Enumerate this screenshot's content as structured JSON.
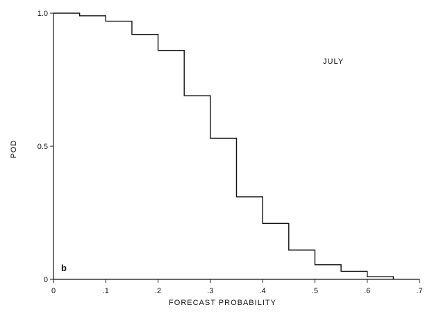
{
  "chart_data": {
    "type": "line",
    "step": "post",
    "title": "",
    "xlabel": "FORECAST PROBABILITY",
    "ylabel": "POD",
    "annotation": "JULY",
    "panel_label": "b",
    "xlim": [
      0,
      0.7
    ],
    "ylim": [
      0,
      1.0
    ],
    "x_ticks": [
      {
        "value": 0,
        "label": "0"
      },
      {
        "value": 0.1,
        "label": ".1"
      },
      {
        "value": 0.2,
        "label": ".2"
      },
      {
        "value": 0.3,
        "label": ".3"
      },
      {
        "value": 0.4,
        "label": ".4"
      },
      {
        "value": 0.5,
        "label": ".5"
      },
      {
        "value": 0.6,
        "label": ".6"
      },
      {
        "value": 0.7,
        "label": ".7"
      }
    ],
    "y_ticks": [
      {
        "value": 0,
        "label": "0"
      },
      {
        "value": 0.5,
        "label": "0.5"
      },
      {
        "value": 1.0,
        "label": "1.0"
      }
    ],
    "grid": false,
    "series": [
      {
        "x": [
          0,
          0.05,
          0.1,
          0.15,
          0.2,
          0.25,
          0.3,
          0.35,
          0.4,
          0.45,
          0.5,
          0.55,
          0.6,
          0.65
        ],
        "y": [
          1.0,
          0.99,
          0.97,
          0.92,
          0.86,
          0.69,
          0.53,
          0.31,
          0.21,
          0.11,
          0.055,
          0.03,
          0.01,
          0.0
        ]
      }
    ],
    "colors": {
      "line": "#111111",
      "axis": "#111111"
    }
  }
}
